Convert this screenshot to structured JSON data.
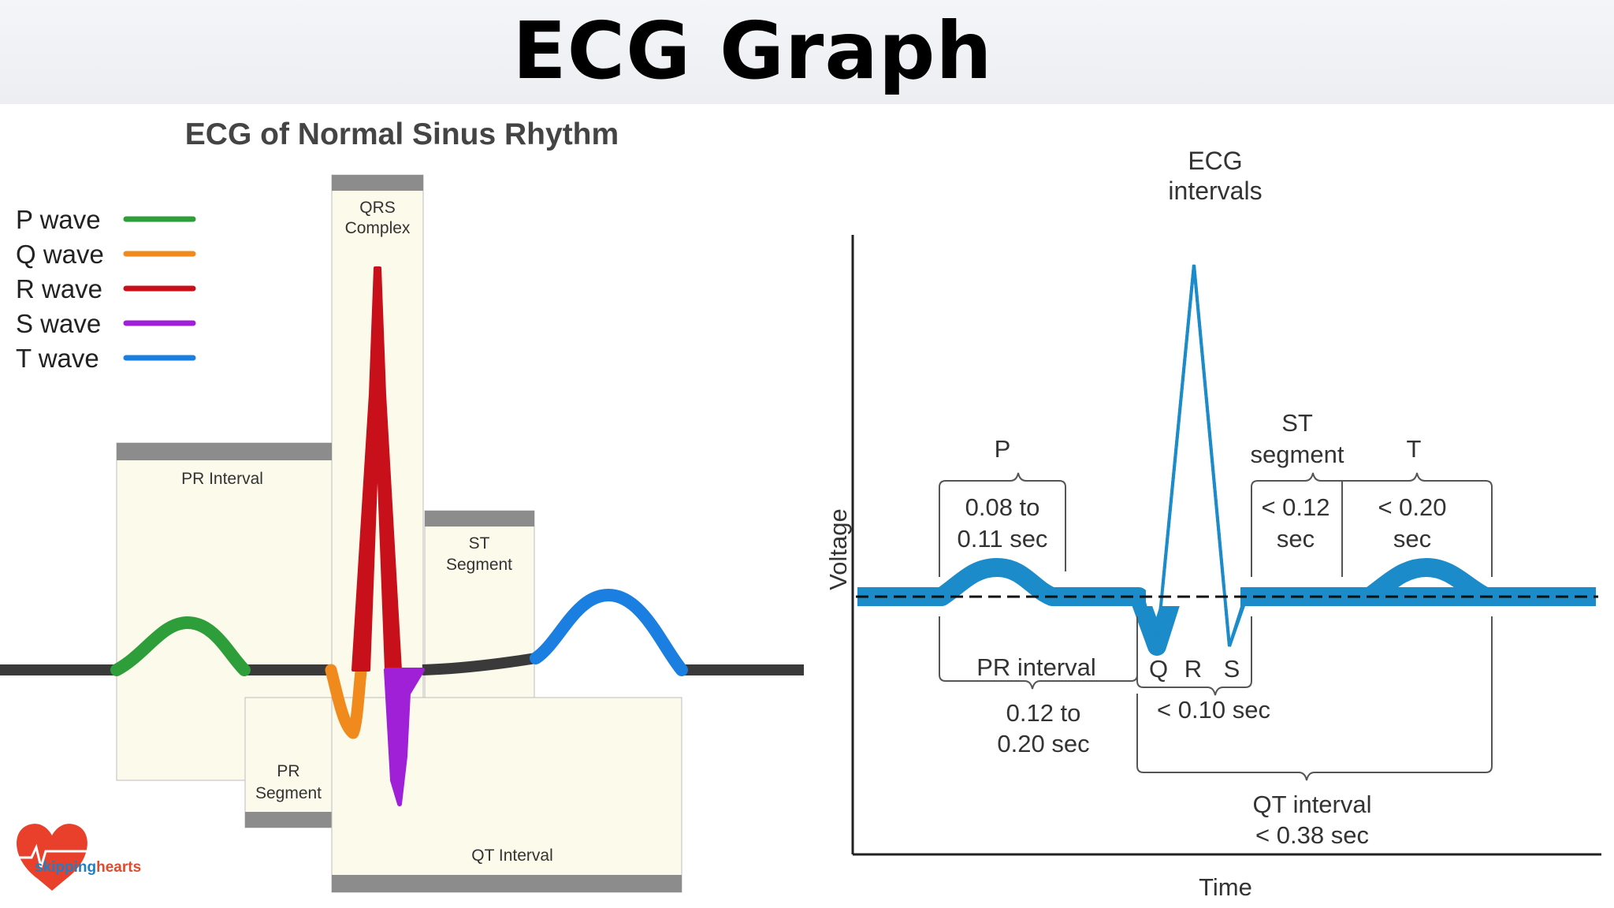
{
  "main_title": "ECG Graph",
  "left": {
    "title": "ECG of Normal Sinus Rhythm",
    "legend": [
      {
        "label": "P wave",
        "color": "#2e9e3a"
      },
      {
        "label": "Q wave",
        "color": "#f08a1c"
      },
      {
        "label": "R wave",
        "color": "#c8101b"
      },
      {
        "label": "S wave",
        "color": "#a020d8"
      },
      {
        "label": "T wave",
        "color": "#1a7fe0"
      }
    ],
    "boxes": {
      "qrs_line1": "QRS",
      "qrs_line2": "Complex",
      "pr_interval": "PR Interval",
      "st_line1": "ST",
      "st_line2": "Segment",
      "pr_seg_line1": "PR",
      "pr_seg_line2": "Segment",
      "qt_interval": "QT Interval"
    },
    "logo": {
      "prefix": "sk",
      "highlight": "ipping",
      "suffix": "hearts",
      "icon": "heart-icon"
    },
    "colors": {
      "baseline": "#3a3a3a",
      "box_fill": "#fbfaeb",
      "box_bar": "#8c8c8c"
    }
  },
  "right": {
    "title_line1": "ECG",
    "title_line2": "intervals",
    "y_axis": "Voltage",
    "x_axis": "Time",
    "p_label": "P",
    "p_dur1": "0.08 to",
    "p_dur2": "0.11 sec",
    "st_label1": "ST",
    "st_label2": "segment",
    "st_dur1": "< 0.12",
    "st_dur2": "sec",
    "t_label": "T",
    "t_dur1": "< 0.20",
    "t_dur2": "sec",
    "pr_label": "PR interval",
    "pr_dur1": "0.12 to",
    "pr_dur2": "0.20 sec",
    "q": "Q",
    "r": "R",
    "s": "S",
    "qrs_dur": "< 0.10 sec",
    "qt_label": "QT interval",
    "qt_dur": "< 0.38 sec",
    "colors": {
      "trace": "#1b8bc9",
      "bracket": "#555555",
      "text": "#333333"
    }
  }
}
